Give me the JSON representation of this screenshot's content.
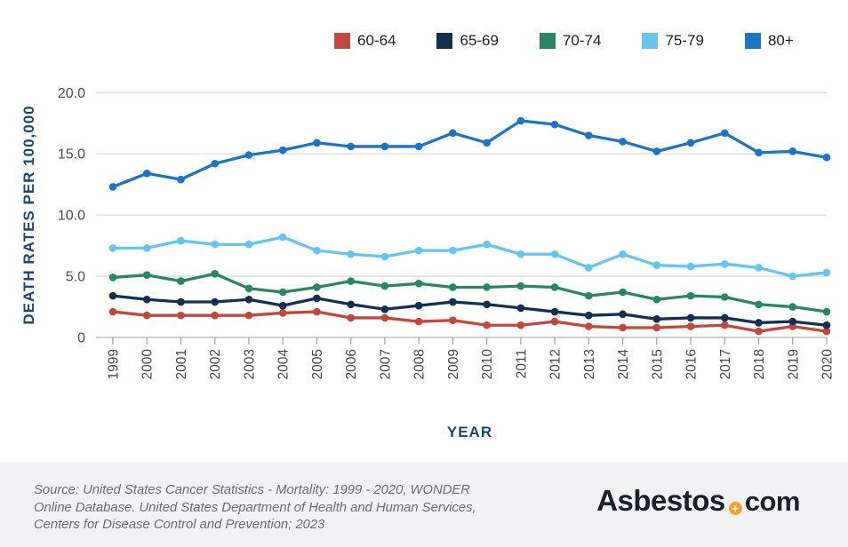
{
  "chart_data": {
    "type": "line",
    "x": [
      "1999",
      "2000",
      "2001",
      "2002",
      "2003",
      "2004",
      "2005",
      "2006",
      "2007",
      "2008",
      "2009",
      "2010",
      "2011",
      "2012",
      "2013",
      "2014",
      "2015",
      "2016",
      "2017",
      "2018",
      "2019",
      "2020"
    ],
    "series": [
      {
        "name": "60-64",
        "color": "#c1483c",
        "values": [
          2.1,
          1.8,
          1.8,
          1.8,
          1.8,
          2.0,
          2.1,
          1.6,
          1.6,
          1.3,
          1.4,
          1.0,
          1.0,
          1.3,
          0.9,
          0.8,
          0.8,
          0.9,
          1.0,
          0.5,
          0.9,
          0.5
        ]
      },
      {
        "name": "65-69",
        "color": "#133050",
        "values": [
          3.4,
          3.1,
          2.9,
          2.9,
          3.1,
          2.6,
          3.2,
          2.7,
          2.3,
          2.6,
          2.9,
          2.7,
          2.4,
          2.1,
          1.8,
          1.9,
          1.5,
          1.6,
          1.6,
          1.2,
          1.3,
          1.0
        ]
      },
      {
        "name": "70-74",
        "color": "#28875d",
        "values": [
          4.9,
          5.1,
          4.6,
          5.2,
          4.0,
          3.7,
          4.1,
          4.6,
          4.2,
          4.4,
          4.1,
          4.1,
          4.2,
          4.1,
          3.4,
          3.7,
          3.1,
          3.4,
          3.3,
          2.7,
          2.5,
          2.1
        ]
      },
      {
        "name": "75-79",
        "color": "#64c5f0",
        "values": [
          7.3,
          7.3,
          7.9,
          7.6,
          7.6,
          8.2,
          7.1,
          6.8,
          6.6,
          7.1,
          7.1,
          7.6,
          6.8,
          6.8,
          5.7,
          6.8,
          5.9,
          5.8,
          6.0,
          5.7,
          5.0,
          5.3
        ]
      },
      {
        "name": "80+",
        "color": "#1d73c8",
        "values": [
          12.3,
          13.4,
          12.9,
          14.2,
          14.9,
          15.3,
          15.9,
          15.6,
          15.6,
          15.6,
          16.7,
          15.9,
          17.7,
          17.4,
          16.5,
          16.0,
          15.2,
          15.9,
          16.7,
          15.1,
          15.2,
          14.7
        ]
      }
    ],
    "title": "",
    "xlabel": "YEAR",
    "ylabel": "DEATH RATES PER 100,000",
    "ylim": [
      0,
      20
    ],
    "yticks": [
      0,
      5,
      10,
      15,
      20
    ],
    "ytick_labels": [
      "0",
      "5.0",
      "10.0",
      "15.0",
      "20.0"
    ],
    "grid": true,
    "legend_position": "top"
  },
  "footer": {
    "source_lines": [
      "Source: United States Cancer Statistics - Mortality: 1999 - 2020, WONDER",
      "Online Database. United States Department of Health and Human Services,",
      "Centers for Disease Control and Prevention; 2023"
    ],
    "logo": {
      "text_main": "Asbestos",
      "plus_symbol": "+",
      "text_suffix": "com",
      "plus_color": "#f5a12f",
      "text_color": "#15212d"
    }
  },
  "colors": {
    "axis_title": "#1a4674",
    "tick_text": "#4b4b50",
    "gridline": "#dcdcdc",
    "axis_line": "#b0b0b3",
    "tick_mark": "#a0a0a3",
    "footer_bg": "#f2f2f4",
    "footer_text": "#6b6b71"
  }
}
